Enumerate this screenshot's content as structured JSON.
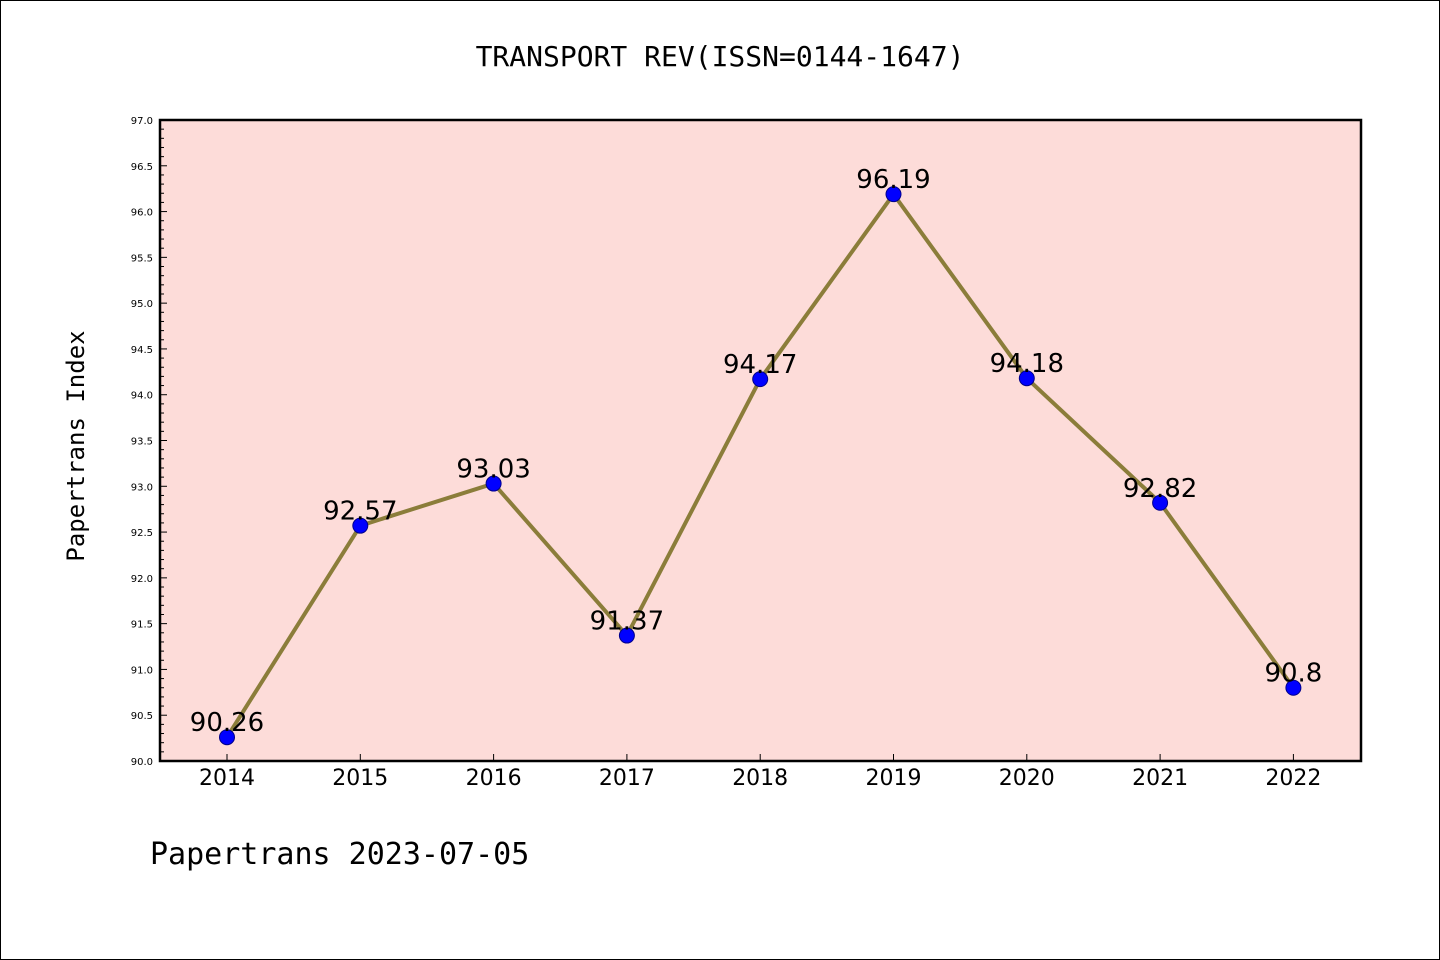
{
  "chart_data": {
    "type": "line",
    "title": "TRANSPORT REV(ISSN=0144-1647)",
    "ylabel": "Papertrans Index",
    "xlabel": "",
    "footer": "Papertrans 2023-07-05",
    "categories": [
      "2014",
      "2015",
      "2016",
      "2017",
      "2018",
      "2019",
      "2020",
      "2021",
      "2022"
    ],
    "values": [
      90.26,
      92.57,
      93.03,
      91.37,
      94.17,
      96.19,
      94.18,
      92.82,
      90.8
    ],
    "data_labels": [
      "90.26",
      "92.57",
      "93.03",
      "91.37",
      "94.17",
      "96.19",
      "94.18",
      "92.82",
      "90.8"
    ],
    "ylim": [
      90.0,
      97.0
    ],
    "yticks": [
      "90.0",
      "90.5",
      "91.0",
      "91.5",
      "92.0",
      "92.5",
      "93.0",
      "93.5",
      "94.0",
      "94.5",
      "95.0",
      "95.5",
      "96.0",
      "96.5",
      "97.0"
    ],
    "grid": false,
    "colors": {
      "plot_background": "#fddcd9",
      "line": "#8b7d3a",
      "marker": "#0000ff"
    }
  }
}
